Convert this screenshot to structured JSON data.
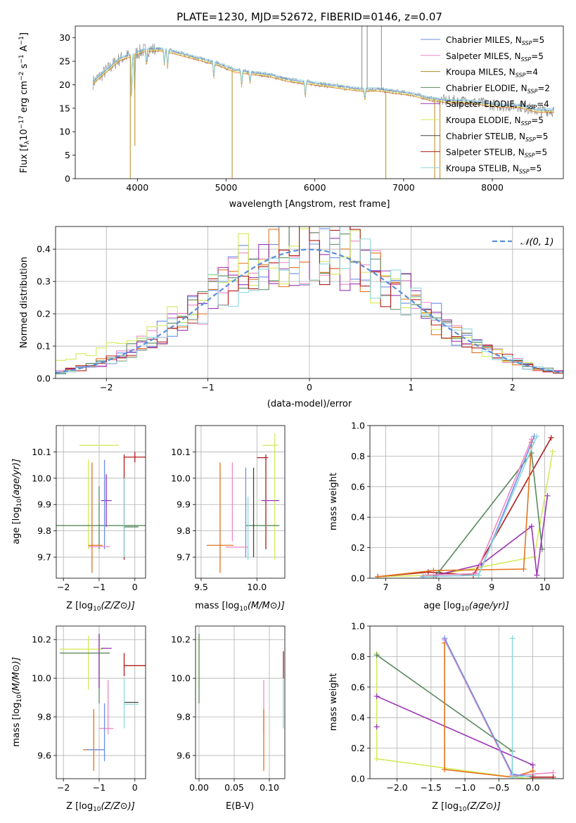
{
  "figure": {
    "title": "PLATE=1230, MJD=52672, FIBERID=0146, z=0.07"
  },
  "colors": {
    "Chabrier MILES": "#6b8fe6",
    "Salpeter MILES": "#ee88c4",
    "Kroupa MILES": "#b38b1e",
    "Chabrier ELODIE": "#5a8a5e",
    "Salpeter ELODIE": "#9b34b5",
    "Kroupa ELODIE": "#d4ea5a",
    "Chabrier STELIB": "#444444",
    "Salpeter STELIB": "#b01c1c",
    "Kroupa STELIB": "#8fd8dd",
    "Orange": "#e2731e",
    "Data": "#8a8a8a",
    "Cyan": "#78d6d8",
    "Normal": "#5b8fd8"
  },
  "chart_data": [
    {
      "type": "line",
      "title": "PLATE=1230, MJD=52672, FIBERID=0146, z=0.07",
      "xlabel": "wavelength [Angstrom, rest frame]",
      "ylabel": "Flux [f",
      "xlim": [
        3300,
        8800
      ],
      "ylim": [
        0,
        32.5
      ],
      "xticks": [
        4000,
        5000,
        6000,
        7000,
        8000
      ],
      "yticks": [
        0,
        5,
        10,
        15,
        20,
        25,
        30
      ],
      "grid": false,
      "legend_position": "top-right",
      "legend": [
        {
          "name": "Chabrier MILES",
          "n": "5"
        },
        {
          "name": "Salpeter MILES",
          "n": "5"
        },
        {
          "name": "Kroupa MILES",
          "n": "4"
        },
        {
          "name": "Chabrier ELODIE",
          "n": "2"
        },
        {
          "name": "Salpeter ELODIE",
          "n": "4"
        },
        {
          "name": "Kroupa ELODIE",
          "n": "5"
        },
        {
          "name": "Chabrier STELIB",
          "n": "5"
        },
        {
          "name": "Salpeter STELIB",
          "n": "5"
        },
        {
          "name": "Kroupa STELIB",
          "n": "5"
        }
      ],
      "continuum": {
        "x": [
          3500,
          3650,
          3800,
          3950,
          4100,
          4300,
          4500,
          4700,
          4900,
          5100,
          5300,
          5500,
          5700,
          5900,
          6100,
          6300,
          6500,
          6700,
          6900,
          7100,
          7300,
          7500,
          7700,
          7900,
          8100,
          8300,
          8500,
          8700
        ],
        "y": [
          20.5,
          23.0,
          25.5,
          26.5,
          27.5,
          27.5,
          26.5,
          25.5,
          24.5,
          23.0,
          22.5,
          22.0,
          21.0,
          20.5,
          20.0,
          19.5,
          19.0,
          19.0,
          18.5,
          18.0,
          17.0,
          16.5,
          16.5,
          16.0,
          15.5,
          15.5,
          14.5,
          14.5
        ]
      },
      "absorption_lines": [
        {
          "x": 3934,
          "depth": 9.0
        },
        {
          "x": 3969,
          "depth": 7.0
        },
        {
          "x": 4102,
          "depth": 3.0
        },
        {
          "x": 4304,
          "depth": 3.0
        },
        {
          "x": 4341,
          "depth": 3.5
        },
        {
          "x": 4861,
          "depth": 3.0
        },
        {
          "x": 5175,
          "depth": 3.0
        },
        {
          "x": 5270,
          "depth": 2.0
        },
        {
          "x": 5892,
          "depth": 3.0
        },
        {
          "x": 6563,
          "depth": 2.0
        }
      ]
    },
    {
      "type": "line",
      "xlabel": "(data-model)/error",
      "ylabel": "Normed distribution",
      "xlim": [
        -2.5,
        2.5
      ],
      "ylim": [
        0,
        0.47
      ],
      "xticks": [
        -2,
        -1,
        0,
        1,
        2
      ],
      "yticks": [
        0.0,
        0.1,
        0.2,
        0.3,
        0.4
      ],
      "grid": true,
      "legend_position": "top-right",
      "legend": [
        {
          "name": "𝒩(0, 1)"
        }
      ],
      "normal": {
        "mu": 0,
        "sigma": 1
      },
      "bin_width": 0.1
    },
    {
      "type": "scatter",
      "xlabel": "Z [log",
      "ylabel": "age  [log",
      "xlim": [
        -2.2,
        0.3
      ],
      "ylim": [
        9.62,
        10.2
      ],
      "xticks": [
        -2,
        -1,
        0
      ],
      "yticks": [
        9.7,
        9.8,
        9.9,
        10.0,
        10.1
      ],
      "grid": true,
      "points": [
        {
          "c": "Kroupa ELODIE",
          "x": -1.0,
          "xerr": 0.55,
          "y": 10.125,
          "yerr": 0.0
        },
        {
          "c": "Kroupa ELODIE",
          "x": -1.3,
          "xerr": 0.0,
          "y": 9.9,
          "yerr": 0.17
        },
        {
          "c": "Chabrier ELODIE",
          "x": -1.0,
          "xerr": 1.3,
          "y": 9.82,
          "yerr": 0.0
        },
        {
          "c": "Chabrier ELODIE",
          "x": -1.0,
          "xerr": 0.0,
          "y": 9.85,
          "yerr": 0.12
        },
        {
          "c": "Salpeter STELIB",
          "x": 0.0,
          "xerr": 0.3,
          "y": 10.08,
          "yerr": 0.02
        },
        {
          "c": "Salpeter STELIB",
          "x": -0.3,
          "xerr": 0.0,
          "y": 9.89,
          "yerr": 0.2
        },
        {
          "c": "Salpeter ELODIE",
          "x": -0.8,
          "xerr": 0.15,
          "y": 9.915,
          "yerr": 0.1
        },
        {
          "c": "Chabrier MILES",
          "x": -0.85,
          "xerr": 0.0,
          "y": 9.9,
          "yerr": 0.17
        },
        {
          "c": "Salpeter MILES",
          "x": -1.0,
          "xerr": 0.3,
          "y": 9.74,
          "yerr": 0.0
        },
        {
          "c": "Orange",
          "x": -1.1,
          "xerr": 0.2,
          "y": 9.745,
          "yerr": 0.0
        },
        {
          "c": "Orange",
          "x": -1.2,
          "xerr": 0.0,
          "y": 9.85,
          "yerr": 0.21
        },
        {
          "c": "Kroupa STELIB",
          "x": -0.3,
          "xerr": 0.0,
          "y": 9.85,
          "yerr": 0.15
        },
        {
          "c": "Chabrier ELODIE",
          "x": -0.1,
          "xerr": 0.2,
          "y": 9.815,
          "yerr": 0.0
        }
      ]
    },
    {
      "type": "scatter",
      "xlabel": "mass [log",
      "ylabel": "",
      "xlim": [
        9.45,
        10.25
      ],
      "ylim": [
        9.62,
        10.2
      ],
      "xticks": [
        9.5,
        10.0
      ],
      "yticks": [
        9.7,
        9.8,
        9.9,
        10.0,
        10.1
      ],
      "grid": true,
      "points": [
        {
          "c": "Kroupa ELODIE",
          "x": 10.12,
          "xerr": 0.07,
          "y": 10.125,
          "yerr": 0.0
        },
        {
          "c": "Kroupa ELODIE",
          "x": 10.16,
          "xerr": 0.0,
          "y": 9.93,
          "yerr": 0.24
        },
        {
          "c": "Salpeter STELIB",
          "x": 10.05,
          "xerr": 0.05,
          "y": 10.078,
          "yerr": 0.0
        },
        {
          "c": "Salpeter STELIB",
          "x": 10.08,
          "xerr": 0.0,
          "y": 9.91,
          "yerr": 0.18
        },
        {
          "c": "Salpeter ELODIE",
          "x": 10.12,
          "xerr": 0.08,
          "y": 9.915,
          "yerr": 0.0
        },
        {
          "c": "Chabrier ELODIE",
          "x": 10.05,
          "xerr": 0.15,
          "y": 9.82,
          "yerr": 0.0
        },
        {
          "c": "Chabrier STELIB",
          "x": 9.97,
          "xerr": 0.0,
          "y": 9.87,
          "yerr": 0.17
        },
        {
          "c": "Chabrier MILES",
          "x": 9.9,
          "xerr": 0.0,
          "y": 9.87,
          "yerr": 0.17
        },
        {
          "c": "Salpeter MILES",
          "x": 9.78,
          "xerr": 0.0,
          "y": 9.91,
          "yerr": 0.15
        },
        {
          "c": "Salpeter MILES",
          "x": 9.82,
          "xerr": 0.1,
          "y": 9.738,
          "yerr": 0.0
        },
        {
          "c": "Orange",
          "x": 9.67,
          "xerr": 0.12,
          "y": 9.745,
          "yerr": 0.0
        },
        {
          "c": "Orange",
          "x": 9.67,
          "xerr": 0.0,
          "y": 9.85,
          "yerr": 0.21
        },
        {
          "c": "Kroupa STELIB",
          "x": 9.92,
          "xerr": 0.0,
          "y": 9.81,
          "yerr": 0.12
        }
      ]
    },
    {
      "type": "line",
      "xlabel": "age  [log",
      "ylabel": "mass weight",
      "xlim": [
        6.7,
        10.35
      ],
      "ylim": [
        0,
        1.0
      ],
      "xticks": [
        7,
        8,
        9,
        10
      ],
      "yticks": [
        0.0,
        0.2,
        0.4,
        0.6,
        0.8,
        1.0
      ],
      "grid": true,
      "series": [
        {
          "c": "Kroupa ELODIE",
          "x": [
            6.85,
            7.95,
            8.75,
            9.8,
            10.15
          ],
          "y": [
            0.01,
            0.02,
            0.07,
            0.14,
            0.83
          ]
        },
        {
          "c": "Salpeter STELIB",
          "x": [
            6.85,
            7.8,
            8.65,
            10.12
          ],
          "y": [
            0.01,
            0.04,
            0.02,
            0.92
          ]
        },
        {
          "c": "Chabrier ELODIE",
          "x": [
            7.9,
            8.0,
            9.75,
            9.95
          ],
          "y": [
            0.01,
            0.04,
            0.82,
            0.19
          ]
        },
        {
          "c": "Salpeter ELODIE",
          "x": [
            7.95,
            8.8,
            9.75,
            9.85,
            10.05
          ],
          "y": [
            0.02,
            0.09,
            0.34,
            0.02,
            0.54
          ]
        },
        {
          "c": "Orange",
          "x": [
            6.85,
            7.9,
            9.6,
            9.75
          ],
          "y": [
            0.01,
            0.05,
            0.06,
            0.89
          ]
        },
        {
          "c": "Chabrier MILES",
          "x": [
            7.7,
            8.75,
            9.8
          ],
          "y": [
            0.01,
            0.02,
            0.93
          ]
        },
        {
          "c": "Salpeter MILES",
          "x": [
            7.75,
            8.7,
            9.75
          ],
          "y": [
            0.02,
            0.03,
            0.91
          ]
        },
        {
          "c": "Kroupa STELIB",
          "x": [
            7.75,
            8.75,
            9.85
          ],
          "y": [
            0.01,
            0.02,
            0.93
          ]
        }
      ]
    },
    {
      "type": "scatter",
      "xlabel": "Z [log",
      "ylabel": "mass [log",
      "xlim": [
        -2.2,
        0.3
      ],
      "ylim": [
        9.48,
        10.27
      ],
      "xticks": [
        -2,
        -1,
        0
      ],
      "yticks": [
        9.6,
        9.8,
        10.0,
        10.2
      ],
      "grid": true,
      "points": [
        {
          "c": "Kroupa ELODIE",
          "x": -1.5,
          "xerr": 0.6,
          "y": 10.15,
          "yerr": 0.0
        },
        {
          "c": "Kroupa ELODIE",
          "x": -1.3,
          "xerr": 0.0,
          "y": 10.08,
          "yerr": 0.14
        },
        {
          "c": "Chabrier ELODIE",
          "x": -1.4,
          "xerr": 0.7,
          "y": 10.13,
          "yerr": 0.0
        },
        {
          "c": "Chabrier ELODIE",
          "x": -1.0,
          "xerr": 0.0,
          "y": 10.05,
          "yerr": 0.18
        },
        {
          "c": "Salpeter ELODIE",
          "x": -0.8,
          "xerr": 0.15,
          "y": 10.155,
          "yerr": 0.0
        },
        {
          "c": "Salpeter ELODIE",
          "x": -1.0,
          "xerr": 0.0,
          "y": 10.09,
          "yerr": 0.14
        },
        {
          "c": "Salpeter STELIB",
          "x": 0.0,
          "xerr": 0.3,
          "y": 10.065,
          "yerr": 0.0
        },
        {
          "c": "Salpeter STELIB",
          "x": -0.3,
          "xerr": 0.0,
          "y": 10.07,
          "yerr": 0.06
        },
        {
          "c": "Chabrier STELIB",
          "x": -0.1,
          "xerr": 0.2,
          "y": 9.875,
          "yerr": 0.0
        },
        {
          "c": "Kroupa STELIB",
          "x": -0.1,
          "xerr": 0.2,
          "y": 9.865,
          "yerr": 0.0
        },
        {
          "c": "Kroupa STELIB",
          "x": -0.3,
          "xerr": 0.0,
          "y": 9.87,
          "yerr": 0.13
        },
        {
          "c": "Salpeter MILES",
          "x": -0.8,
          "xerr": 0.2,
          "y": 9.74,
          "yerr": 0.0
        },
        {
          "c": "Salpeter MILES",
          "x": -0.75,
          "xerr": 0.0,
          "y": 9.85,
          "yerr": 0.14
        },
        {
          "c": "Chabrier MILES",
          "x": -0.85,
          "xerr": 0.0,
          "y": 9.72,
          "yerr": 0.15
        },
        {
          "c": "Orange",
          "x": -1.2,
          "xerr": 0.25,
          "y": 9.63,
          "yerr": 0.0
        },
        {
          "c": "Orange",
          "x": -1.15,
          "xerr": 0.0,
          "y": 9.68,
          "yerr": 0.16
        },
        {
          "c": "Chabrier MILES",
          "x": -1.1,
          "xerr": 0.25,
          "y": 9.63,
          "yerr": 0.0
        }
      ]
    },
    {
      "type": "scatter",
      "xlabel": "E(B-V)",
      "ylabel": "",
      "xlim": [
        -0.005,
        0.122
      ],
      "ylim": [
        9.48,
        10.27
      ],
      "xticks": [
        0.0,
        0.05,
        0.1
      ],
      "yticks": [
        9.6,
        9.8,
        10.0,
        10.2
      ],
      "grid": true,
      "points": [
        {
          "c": "Kroupa ELODIE",
          "x": 0.0,
          "xerr": 0.0,
          "y": 10.08,
          "yerr": 0.14
        },
        {
          "c": "Chabrier ELODIE",
          "x": 0.0,
          "xerr": 0.0,
          "y": 10.05,
          "yerr": 0.18
        },
        {
          "c": "Salpeter MILES",
          "x": 0.092,
          "xerr": 0.0,
          "y": 9.85,
          "yerr": 0.14
        },
        {
          "c": "Orange",
          "x": 0.092,
          "xerr": 0.0,
          "y": 9.68,
          "yerr": 0.16
        },
        {
          "c": "Salpeter STELIB",
          "x": 0.12,
          "xerr": 0.0,
          "y": 10.07,
          "yerr": 0.07
        },
        {
          "c": "Kroupa STELIB",
          "x": 0.12,
          "xerr": 0.0,
          "y": 9.87,
          "yerr": 0.13
        }
      ]
    },
    {
      "type": "line",
      "xlabel": "Z [log",
      "ylabel": "mass weight",
      "xlim": [
        -2.4,
        0.45
      ],
      "ylim": [
        0,
        1.0
      ],
      "xticks": [
        -2.0,
        -1.5,
        -1.0,
        -0.5,
        0.0
      ],
      "yticks": [
        0.0,
        0.2,
        0.4,
        0.6,
        0.8,
        1.0
      ],
      "grid": true,
      "series": [
        {
          "c": "Kroupa ELODIE",
          "x": [
            -2.3,
            -2.3,
            -1.3,
            -0.3,
            0.0
          ],
          "y": [
            0.82,
            0.13,
            0.07,
            0.01,
            0.0
          ]
        },
        {
          "c": "Chabrier ELODIE",
          "x": [
            -2.3,
            -0.3,
            -0.3
          ],
          "y": [
            0.81,
            0.18,
            0.01
          ]
        },
        {
          "c": "Salpeter ELODIE",
          "x": [
            -2.3,
            0.0,
            0.0
          ],
          "y": [
            0.54,
            0.09,
            0.02
          ]
        },
        {
          "c": "Orange",
          "x": [
            -1.3,
            -1.3,
            -0.3,
            0.0
          ],
          "y": [
            0.89,
            0.06,
            0.01,
            0.05
          ]
        },
        {
          "c": "Salpeter MILES",
          "x": [
            -1.3,
            -0.3,
            0.3
          ],
          "y": [
            0.91,
            0.02,
            0.04
          ]
        },
        {
          "c": "Chabrier MILES",
          "x": [
            -1.3,
            -0.3,
            0.0
          ],
          "y": [
            0.92,
            0.03,
            0.01
          ]
        },
        {
          "c": "Kroupa STELIB",
          "x": [
            -0.3,
            -0.3,
            0.0
          ],
          "y": [
            0.92,
            0.01,
            0.02
          ]
        },
        {
          "c": "Salpeter STELIB",
          "x": [
            0.0,
            0.3
          ],
          "y": [
            0.01,
            0.01
          ]
        }
      ],
      "extra_markers": [
        {
          "c": "Salpeter ELODIE",
          "x": -2.3,
          "y": 0.34
        }
      ]
    }
  ]
}
